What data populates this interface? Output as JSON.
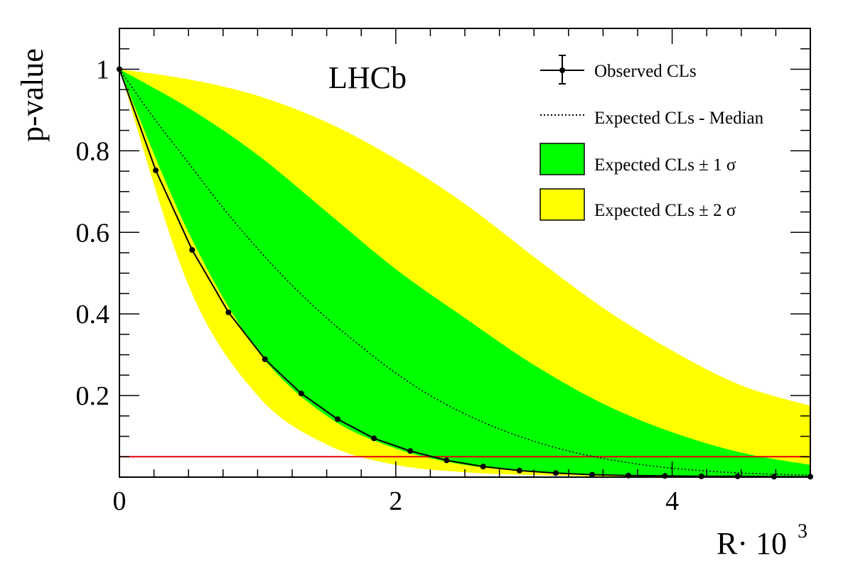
{
  "chart_data": {
    "type": "area",
    "experiment_label": "LHCb",
    "xlabel": "R· 10",
    "xlabel_exponent": "3",
    "ylabel": "p-value",
    "xlim": [
      0,
      5
    ],
    "ylim": [
      0,
      1.1
    ],
    "x_ticks": [
      0,
      2,
      4
    ],
    "y_ticks": [
      0.2,
      0.4,
      0.6,
      0.8,
      1
    ],
    "threshold": 0.05,
    "threshold_color": "#e8000b",
    "colors": {
      "band1": "#00ff00",
      "band2": "#ffff00",
      "observed": "#000000",
      "median": "#000000"
    },
    "legend": {
      "placement": "top-right",
      "entries": [
        {
          "key": "observed",
          "label": "Observed CLs"
        },
        {
          "key": "median",
          "label": "Expected CLs - Median"
        },
        {
          "key": "band1",
          "label": "Expected CLs ± 1 σ"
        },
        {
          "key": "band2",
          "label": "Expected CLs ± 2 σ"
        }
      ]
    },
    "series": [
      {
        "name": "Observed CLs",
        "x": [
          0,
          0.263,
          0.526,
          0.789,
          1.053,
          1.316,
          1.579,
          1.842,
          2.105,
          2.368,
          2.632,
          2.895,
          3.158,
          3.421,
          3.684,
          3.947,
          4.211,
          4.474,
          4.737,
          5.0
        ],
        "y": [
          1.0,
          0.752,
          0.557,
          0.404,
          0.289,
          0.205,
          0.142,
          0.095,
          0.064,
          0.041,
          0.026,
          0.016,
          0.01,
          0.006,
          0.004,
          0.003,
          0.002,
          0.002,
          0.001,
          0.001
        ]
      },
      {
        "name": "Expected CLs - Median",
        "x": [
          0,
          0.25,
          0.5,
          0.75,
          1.0,
          1.25,
          1.5,
          1.75,
          2.0,
          2.25,
          2.5,
          2.75,
          3.0,
          3.25,
          3.5,
          3.75,
          4.0,
          4.25,
          4.5,
          4.75,
          5.0
        ],
        "y": [
          1.0,
          0.88,
          0.77,
          0.66,
          0.56,
          0.47,
          0.39,
          0.32,
          0.255,
          0.2,
          0.155,
          0.118,
          0.088,
          0.064,
          0.046,
          0.032,
          0.022,
          0.015,
          0.01,
          0.007,
          0.005
        ]
      },
      {
        "name": "Expected CLs ± 1 σ",
        "x": [
          0,
          0.5,
          1.0,
          1.5,
          2.0,
          2.5,
          3.0,
          3.5,
          4.0,
          4.5,
          5.0
        ],
        "y_low": [
          1.0,
          0.6,
          0.31,
          0.15,
          0.07,
          0.03,
          0.013,
          0.005,
          0.002,
          0.001,
          0.0005
        ],
        "y_high": [
          1.0,
          0.905,
          0.79,
          0.65,
          0.51,
          0.39,
          0.275,
          0.18,
          0.11,
          0.06,
          0.03
        ]
      },
      {
        "name": "Expected CLs ± 2 σ",
        "x": [
          0,
          0.5,
          1.0,
          1.5,
          2.0,
          2.5,
          3.0,
          3.5,
          4.0,
          4.5,
          5.0
        ],
        "y_low": [
          1.0,
          0.47,
          0.2,
          0.08,
          0.03,
          0.012,
          0.005,
          0.002,
          0.001,
          0.0005,
          0.0002
        ],
        "y_high": [
          1.0,
          0.975,
          0.935,
          0.87,
          0.78,
          0.67,
          0.54,
          0.415,
          0.31,
          0.225,
          0.175
        ]
      }
    ]
  }
}
